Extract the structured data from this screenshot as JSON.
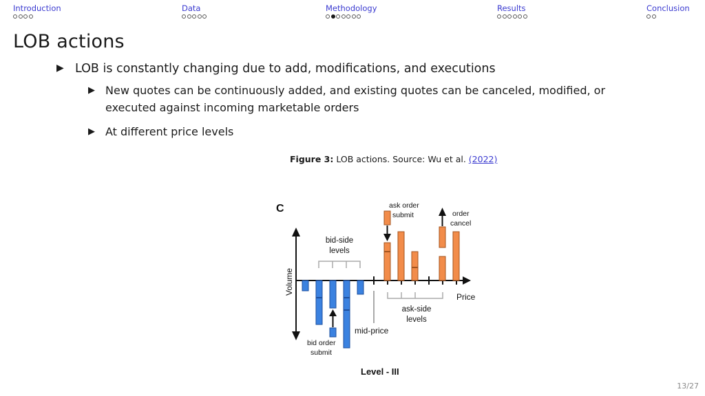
{
  "nav": {
    "sections": [
      {
        "label": "Introduction",
        "dots": 4,
        "filled": -1
      },
      {
        "label": "Data",
        "dots": 5,
        "filled": -1
      },
      {
        "label": "Methodology",
        "dots": 7,
        "filled": 1
      },
      {
        "label": "Results",
        "dots": 6,
        "filled": -1
      },
      {
        "label": "Conclusion",
        "dots": 2,
        "filled": -1
      }
    ]
  },
  "slide": {
    "title": "LOB actions",
    "bullet1": "LOB is constantly changing due to add, modifications, and executions",
    "sub1_line1": "New quotes can be continuously added, and existing quotes can be canceled, modified, or",
    "sub1_line2": "executed against incoming marketable orders",
    "sub2": "At different price levels"
  },
  "caption": {
    "label": "Figure 3:",
    "text": "LOB actions. Source: Wu et al.",
    "cite": "(2022)"
  },
  "figure": {
    "panel_letter": "C",
    "ylabel": "Volume",
    "price_label": "Price",
    "bid_levels_label": [
      "bid-side",
      "levels"
    ],
    "ask_levels_label": [
      "ask-side",
      "levels"
    ],
    "mid_price_label": "mid-price",
    "ask_submit_label": [
      "ask order",
      "submit"
    ],
    "order_cancel_label": [
      "order",
      "cancel"
    ],
    "bid_submit_label": [
      "bid order",
      "submit"
    ],
    "footer": "Level - III",
    "colors": {
      "bid": "#3b82e0",
      "ask": "#f28c4a"
    }
  },
  "page_number": "13/27"
}
